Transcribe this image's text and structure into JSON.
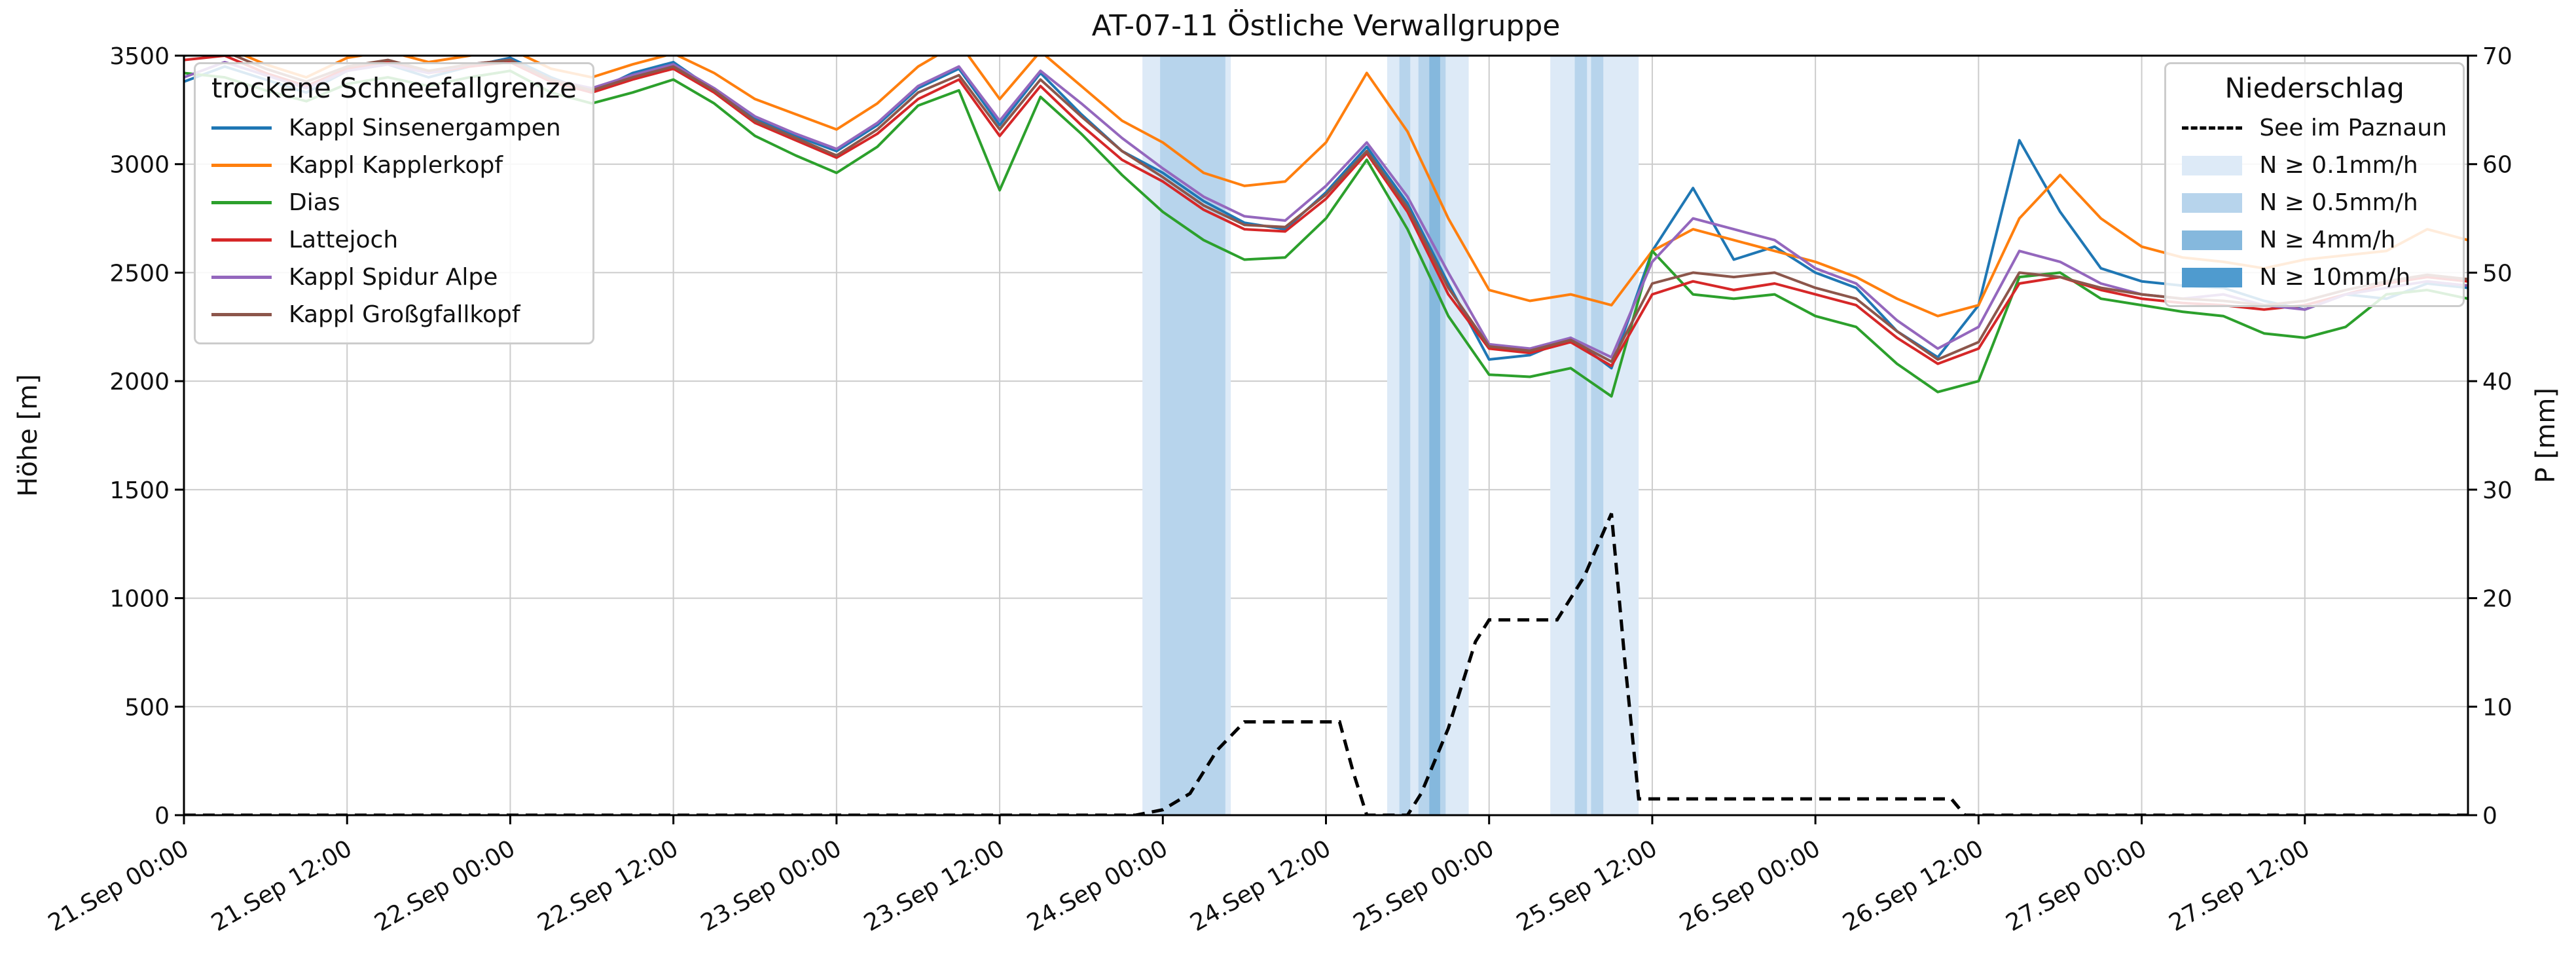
{
  "title": "AT-07-11 Östliche Verwallgruppe",
  "axes": {
    "y_left": {
      "label": "Höhe [m]",
      "range": [
        0,
        3500
      ],
      "ticks": [
        0,
        500,
        1000,
        1500,
        2000,
        2500,
        3000,
        3500
      ]
    },
    "y_right": {
      "label": "P [mm]",
      "range": [
        0,
        70
      ],
      "ticks": [
        0,
        10,
        20,
        30,
        40,
        50,
        60,
        70
      ]
    },
    "x": {
      "range_hours": [
        0,
        168
      ],
      "tick_hours": [
        0,
        12,
        24,
        36,
        48,
        60,
        72,
        84,
        96,
        108,
        120,
        132,
        144,
        156
      ],
      "tick_labels": [
        "21.Sep 00:00",
        "21.Sep 12:00",
        "22.Sep 00:00",
        "22.Sep 12:00",
        "23.Sep 00:00",
        "23.Sep 12:00",
        "24.Sep 00:00",
        "24.Sep 12:00",
        "25.Sep 00:00",
        "25.Sep 12:00",
        "26.Sep 00:00",
        "26.Sep 12:00",
        "27.Sep 00:00",
        "27.Sep 12:00"
      ]
    },
    "grid": true
  },
  "legend_lines": {
    "title": "trockene Schneefallgrenze"
  },
  "legend_precip": {
    "title": "Niederschlag",
    "items": [
      {
        "label": "See im Paznaun",
        "swatch": "dashed-line",
        "color": "#000000"
      },
      {
        "label": "N ≥ 0.1mm/h",
        "swatch": "patch",
        "color": "#ddeaf7"
      },
      {
        "label": "N ≥ 0.5mm/h",
        "swatch": "patch",
        "color": "#b7d4ec"
      },
      {
        "label": "N ≥ 4mm/h",
        "swatch": "patch",
        "color": "#85b8dd"
      },
      {
        "label": "N ≥ 10mm/h",
        "swatch": "patch",
        "color": "#4f9bcf"
      }
    ]
  },
  "chart_data": {
    "type": "line",
    "title": "AT-07-11 Östliche Verwallgruppe",
    "xlabel": "",
    "ylabel_left": "Höhe [m]",
    "ylabel_right": "P [mm]",
    "x_start": "21.Sep 00:00",
    "x_hours": [
      0,
      3,
      6,
      9,
      12,
      15,
      18,
      21,
      24,
      27,
      30,
      33,
      36,
      39,
      42,
      45,
      48,
      51,
      54,
      57,
      60,
      63,
      66,
      69,
      72,
      75,
      78,
      81,
      84,
      87,
      90,
      93,
      96,
      99,
      102,
      105,
      108,
      111,
      114,
      117,
      120,
      123,
      126,
      129,
      132,
      135,
      138,
      141,
      144,
      147,
      150,
      153,
      156,
      159,
      162,
      165,
      168
    ],
    "series": [
      {
        "name": "Kappl Sinsenergampen",
        "color": "#1f77b4",
        "values": [
          3380,
          3450,
          3390,
          3330,
          3430,
          3460,
          3400,
          3450,
          3490,
          3400,
          3330,
          3420,
          3470,
          3340,
          3210,
          3130,
          3060,
          3180,
          3350,
          3440,
          3180,
          3420,
          3230,
          3060,
          2960,
          2830,
          2730,
          2700,
          2870,
          3080,
          2820,
          2450,
          2100,
          2120,
          2200,
          2060,
          2600,
          2890,
          2560,
          2620,
          2500,
          2430,
          2230,
          2110,
          2350,
          3110,
          2780,
          2520,
          2460,
          2440,
          2430,
          2370,
          2330,
          2400,
          2380,
          2450,
          2430
        ]
      },
      {
        "name": "Kappl Kapplerkopf",
        "color": "#ff7f0e",
        "values": [
          3500,
          3540,
          3460,
          3400,
          3490,
          3520,
          3470,
          3500,
          3530,
          3440,
          3400,
          3460,
          3510,
          3420,
          3300,
          3230,
          3160,
          3280,
          3450,
          3560,
          3300,
          3520,
          3360,
          3200,
          3100,
          2960,
          2900,
          2920,
          3100,
          3420,
          3150,
          2750,
          2420,
          2370,
          2400,
          2350,
          2600,
          2700,
          2650,
          2600,
          2550,
          2480,
          2380,
          2300,
          2350,
          2750,
          2950,
          2750,
          2620,
          2570,
          2550,
          2520,
          2560,
          2580,
          2600,
          2700,
          2650
        ]
      },
      {
        "name": "Dias",
        "color": "#2ca02c",
        "values": [
          3420,
          3400,
          3340,
          3290,
          3370,
          3400,
          3360,
          3400,
          3430,
          3330,
          3280,
          3330,
          3390,
          3280,
          3130,
          3040,
          2960,
          3080,
          3270,
          3340,
          2880,
          3310,
          3140,
          2950,
          2780,
          2650,
          2560,
          2570,
          2750,
          3020,
          2700,
          2300,
          2030,
          2020,
          2060,
          1930,
          2600,
          2400,
          2380,
          2400,
          2300,
          2250,
          2080,
          1950,
          2000,
          2480,
          2500,
          2380,
          2350,
          2320,
          2300,
          2220,
          2200,
          2250,
          2400,
          2420,
          2380
        ]
      },
      {
        "name": "Lattejoch",
        "color": "#d62728",
        "values": [
          3480,
          3500,
          3420,
          3360,
          3440,
          3470,
          3420,
          3450,
          3470,
          3380,
          3330,
          3390,
          3440,
          3330,
          3190,
          3110,
          3030,
          3140,
          3300,
          3390,
          3130,
          3360,
          3180,
          3020,
          2920,
          2790,
          2700,
          2690,
          2840,
          3050,
          2780,
          2400,
          2150,
          2130,
          2180,
          2070,
          2400,
          2460,
          2420,
          2450,
          2400,
          2350,
          2200,
          2080,
          2150,
          2450,
          2480,
          2420,
          2380,
          2360,
          2350,
          2330,
          2350,
          2400,
          2450,
          2480,
          2460
        ]
      },
      {
        "name": "Kappl Spidur Alpe",
        "color": "#9467bd",
        "values": [
          3400,
          3470,
          3410,
          3350,
          3430,
          3460,
          3420,
          3460,
          3480,
          3390,
          3350,
          3410,
          3460,
          3350,
          3220,
          3140,
          3070,
          3190,
          3360,
          3450,
          3200,
          3430,
          3280,
          3120,
          2980,
          2850,
          2760,
          2740,
          2900,
          3100,
          2850,
          2500,
          2170,
          2150,
          2200,
          2110,
          2550,
          2750,
          2700,
          2650,
          2520,
          2450,
          2280,
          2150,
          2250,
          2600,
          2550,
          2450,
          2400,
          2380,
          2400,
          2350,
          2330,
          2400,
          2430,
          2460,
          2440
        ]
      },
      {
        "name": "Kappl Großgfallkopf",
        "color": "#8c564b",
        "values": [
          3500,
          3520,
          3440,
          3380,
          3450,
          3480,
          3430,
          3460,
          3480,
          3390,
          3340,
          3400,
          3450,
          3340,
          3200,
          3120,
          3040,
          3160,
          3330,
          3410,
          3160,
          3390,
          3220,
          3060,
          2940,
          2810,
          2720,
          2710,
          2860,
          3060,
          2800,
          2430,
          2160,
          2140,
          2190,
          2090,
          2450,
          2500,
          2480,
          2500,
          2430,
          2380,
          2230,
          2100,
          2180,
          2500,
          2480,
          2430,
          2400,
          2380,
          2370,
          2350,
          2370,
          2420,
          2460,
          2490,
          2470
        ]
      }
    ],
    "precip_line": {
      "name": "See im Paznaun",
      "color": "#000000",
      "style": "dashed",
      "axis": "right",
      "unit": "mm",
      "points": [
        [
          0,
          0
        ],
        [
          70,
          0
        ],
        [
          72,
          0.5
        ],
        [
          74,
          2
        ],
        [
          76,
          6
        ],
        [
          78,
          8.6
        ],
        [
          85,
          8.6
        ],
        [
          86,
          4
        ],
        [
          87,
          0
        ],
        [
          90,
          0
        ],
        [
          91,
          2
        ],
        [
          93,
          8
        ],
        [
          95,
          16
        ],
        [
          96,
          18
        ],
        [
          101,
          18
        ],
        [
          103,
          22
        ],
        [
          105,
          27.8
        ],
        [
          106,
          14
        ],
        [
          107,
          1.5
        ],
        [
          130,
          1.5
        ],
        [
          131,
          0
        ],
        [
          168,
          0
        ]
      ]
    },
    "precip_bands": [
      {
        "start_h": 70.5,
        "end_h": 77.0,
        "level": "0.1"
      },
      {
        "start_h": 88.5,
        "end_h": 94.5,
        "level": "0.1"
      },
      {
        "start_h": 100.5,
        "end_h": 107.0,
        "level": "0.1"
      },
      {
        "start_h": 71.8,
        "end_h": 76.6,
        "level": "0.5"
      },
      {
        "start_h": 89.4,
        "end_h": 90.2,
        "level": "0.5"
      },
      {
        "start_h": 90.8,
        "end_h": 92.8,
        "level": "0.5"
      },
      {
        "start_h": 102.3,
        "end_h": 103.2,
        "level": "0.5"
      },
      {
        "start_h": 103.5,
        "end_h": 104.4,
        "level": "0.5"
      },
      {
        "start_h": 91.6,
        "end_h": 92.4,
        "level": "4"
      }
    ],
    "band_colors": {
      "0.1": "#ddeaf7",
      "0.5": "#b7d4ec",
      "4": "#85b8dd",
      "10": "#4f9bcf"
    },
    "grid_color": "#cccccc"
  }
}
